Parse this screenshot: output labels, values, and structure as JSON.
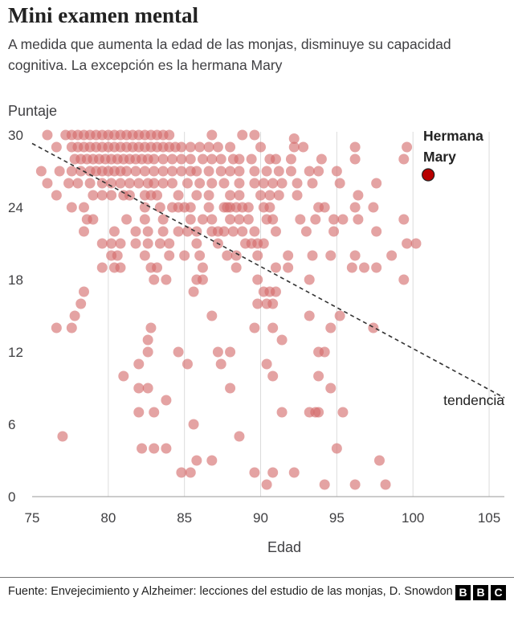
{
  "chart_data": {
    "type": "scatter",
    "title": "Mini examen mental",
    "subtitle": "A medida que aumenta la edad de las monjas, disminuye su capacidad cognitiva. La excepción es la hermana Mary",
    "xlabel": "Edad",
    "ylabel": "Puntaje",
    "xlim": [
      75,
      106
    ],
    "ylim": [
      0,
      30
    ],
    "x_ticks": [
      75,
      80,
      85,
      90,
      95,
      100,
      105
    ],
    "y_ticks": [
      0,
      6,
      12,
      18,
      24,
      30
    ],
    "x_tick_labels": [
      "75",
      "80",
      "85",
      "90",
      "95",
      "100",
      "105"
    ],
    "y_tick_labels": [
      "0",
      "6",
      "12",
      "18",
      "24",
      "30"
    ],
    "grid": "vertical",
    "point_color": "#d46a6a",
    "highlight_color": "#b80000",
    "trend_line": {
      "label": "tendencia",
      "from": [
        75,
        29.3
      ],
      "to": [
        106,
        8.2
      ]
    },
    "highlight": {
      "label_line1": "Hermana",
      "label_line2": "Mary",
      "x": 101,
      "y": 26.7
    },
    "points": [
      [
        76,
        30
      ],
      [
        77.2,
        30
      ],
      [
        77.6,
        30
      ],
      [
        78,
        30
      ],
      [
        78.4,
        30
      ],
      [
        78.8,
        30
      ],
      [
        79.2,
        30
      ],
      [
        79.6,
        30
      ],
      [
        80,
        30
      ],
      [
        80.4,
        30
      ],
      [
        80.8,
        30
      ],
      [
        81.2,
        30
      ],
      [
        81.6,
        30
      ],
      [
        82,
        30
      ],
      [
        82.4,
        30
      ],
      [
        82.8,
        30
      ],
      [
        83.2,
        30
      ],
      [
        83.6,
        30
      ],
      [
        84,
        30
      ],
      [
        86.8,
        30
      ],
      [
        88.8,
        30
      ],
      [
        89.6,
        30
      ],
      [
        92.2,
        29.7
      ],
      [
        76.6,
        29
      ],
      [
        77.6,
        29
      ],
      [
        78,
        29
      ],
      [
        78.4,
        29
      ],
      [
        78.8,
        29
      ],
      [
        79.2,
        29
      ],
      [
        79.6,
        29
      ],
      [
        80,
        29
      ],
      [
        80.4,
        29
      ],
      [
        80.8,
        29
      ],
      [
        81.2,
        29
      ],
      [
        81.6,
        29
      ],
      [
        82,
        29
      ],
      [
        82.4,
        29
      ],
      [
        82.8,
        29
      ],
      [
        83.2,
        29
      ],
      [
        83.6,
        29
      ],
      [
        84,
        29
      ],
      [
        84.4,
        29
      ],
      [
        84.8,
        29
      ],
      [
        85.4,
        29
      ],
      [
        86,
        29
      ],
      [
        86.6,
        29
      ],
      [
        87.2,
        29
      ],
      [
        88,
        29
      ],
      [
        90,
        29
      ],
      [
        92.2,
        29
      ],
      [
        92.8,
        29
      ],
      [
        96.2,
        29
      ],
      [
        99.6,
        29
      ],
      [
        77.8,
        28
      ],
      [
        78.2,
        28
      ],
      [
        78.6,
        28
      ],
      [
        79,
        28
      ],
      [
        79.4,
        28
      ],
      [
        79.8,
        28
      ],
      [
        80.2,
        28
      ],
      [
        80.6,
        28
      ],
      [
        81,
        28
      ],
      [
        81.4,
        28
      ],
      [
        81.8,
        28
      ],
      [
        82.2,
        28
      ],
      [
        82.6,
        28
      ],
      [
        83,
        28
      ],
      [
        83.6,
        28
      ],
      [
        84.2,
        28
      ],
      [
        84.8,
        28
      ],
      [
        85.4,
        28
      ],
      [
        86.2,
        28
      ],
      [
        86.8,
        28
      ],
      [
        87.4,
        28
      ],
      [
        88.2,
        28
      ],
      [
        88.6,
        28
      ],
      [
        89.4,
        28
      ],
      [
        90.6,
        28
      ],
      [
        91,
        28
      ],
      [
        92,
        28
      ],
      [
        94,
        28
      ],
      [
        96.2,
        28
      ],
      [
        99.4,
        28
      ],
      [
        75.6,
        27
      ],
      [
        76.8,
        27
      ],
      [
        77.6,
        27
      ],
      [
        78.2,
        27
      ],
      [
        78.8,
        27
      ],
      [
        79.2,
        27
      ],
      [
        79.6,
        27
      ],
      [
        80,
        27
      ],
      [
        80.4,
        27
      ],
      [
        80.8,
        27
      ],
      [
        81.2,
        27
      ],
      [
        81.8,
        27
      ],
      [
        82.4,
        27
      ],
      [
        83,
        27
      ],
      [
        83.6,
        27
      ],
      [
        84.2,
        27
      ],
      [
        84.8,
        27
      ],
      [
        85.4,
        27
      ],
      [
        85.8,
        27
      ],
      [
        86.6,
        27
      ],
      [
        87.4,
        27
      ],
      [
        88,
        27
      ],
      [
        88.6,
        27
      ],
      [
        89.6,
        27
      ],
      [
        90.4,
        27
      ],
      [
        91.2,
        27
      ],
      [
        92,
        27
      ],
      [
        93.2,
        27
      ],
      [
        93.8,
        27
      ],
      [
        95,
        27
      ],
      [
        76,
        26
      ],
      [
        77.4,
        26
      ],
      [
        78,
        26
      ],
      [
        78.8,
        26
      ],
      [
        79.6,
        26
      ],
      [
        80.2,
        26
      ],
      [
        80.8,
        26
      ],
      [
        81.4,
        26
      ],
      [
        82,
        26
      ],
      [
        82.6,
        26
      ],
      [
        83,
        26
      ],
      [
        83.6,
        26
      ],
      [
        84.2,
        26
      ],
      [
        85.2,
        26
      ],
      [
        86,
        26
      ],
      [
        86.8,
        26
      ],
      [
        87.6,
        26
      ],
      [
        88.6,
        26
      ],
      [
        89.6,
        26
      ],
      [
        90.2,
        26
      ],
      [
        90.8,
        26
      ],
      [
        91.4,
        26
      ],
      [
        92.4,
        26
      ],
      [
        93.4,
        26
      ],
      [
        95.2,
        26
      ],
      [
        97.6,
        26
      ],
      [
        76.6,
        25
      ],
      [
        79,
        25
      ],
      [
        79.6,
        25
      ],
      [
        80.2,
        25
      ],
      [
        81,
        25
      ],
      [
        81.4,
        25
      ],
      [
        82.4,
        25
      ],
      [
        82.8,
        25
      ],
      [
        83.2,
        25
      ],
      [
        84.6,
        25
      ],
      [
        85.8,
        25
      ],
      [
        86.6,
        25
      ],
      [
        88,
        25
      ],
      [
        88.6,
        25
      ],
      [
        90,
        25
      ],
      [
        90.6,
        25
      ],
      [
        91.2,
        25
      ],
      [
        92.4,
        25
      ],
      [
        96.4,
        25
      ],
      [
        77.6,
        24
      ],
      [
        78.4,
        24
      ],
      [
        82.4,
        24
      ],
      [
        83.4,
        24
      ],
      [
        84.2,
        24
      ],
      [
        84.6,
        24
      ],
      [
        85,
        24
      ],
      [
        85.4,
        24
      ],
      [
        86.6,
        24
      ],
      [
        87.6,
        24
      ],
      [
        87.8,
        24
      ],
      [
        88,
        24
      ],
      [
        88.4,
        24
      ],
      [
        88.8,
        24
      ],
      [
        89.2,
        24
      ],
      [
        90.2,
        24
      ],
      [
        90.6,
        24
      ],
      [
        93.8,
        24
      ],
      [
        94.2,
        24
      ],
      [
        96.2,
        24
      ],
      [
        97.4,
        24
      ],
      [
        78.6,
        23
      ],
      [
        79,
        23
      ],
      [
        81.2,
        23
      ],
      [
        82.4,
        23
      ],
      [
        83.6,
        23
      ],
      [
        85.4,
        23
      ],
      [
        86.2,
        23
      ],
      [
        86.8,
        23
      ],
      [
        88,
        23
      ],
      [
        88.6,
        23
      ],
      [
        89.2,
        23
      ],
      [
        90.4,
        23
      ],
      [
        90.8,
        23
      ],
      [
        92.6,
        23
      ],
      [
        93.6,
        23
      ],
      [
        94.8,
        23
      ],
      [
        95.4,
        23
      ],
      [
        96.4,
        23
      ],
      [
        99.4,
        23
      ],
      [
        78.4,
        22
      ],
      [
        80.4,
        22
      ],
      [
        81.8,
        22
      ],
      [
        82.6,
        22
      ],
      [
        83.6,
        22
      ],
      [
        84.6,
        22
      ],
      [
        85.2,
        22
      ],
      [
        85.8,
        22
      ],
      [
        86.8,
        22
      ],
      [
        87.2,
        22
      ],
      [
        87.6,
        22
      ],
      [
        88.2,
        22
      ],
      [
        88.8,
        22
      ],
      [
        89.6,
        22
      ],
      [
        91,
        22
      ],
      [
        93,
        22
      ],
      [
        94.8,
        22
      ],
      [
        97.6,
        22
      ],
      [
        79.6,
        21
      ],
      [
        80.2,
        21
      ],
      [
        80.8,
        21
      ],
      [
        81.8,
        21
      ],
      [
        82.6,
        21
      ],
      [
        83.4,
        21
      ],
      [
        84,
        21
      ],
      [
        85.8,
        21
      ],
      [
        87.2,
        21
      ],
      [
        89,
        21
      ],
      [
        89.4,
        21
      ],
      [
        89.8,
        21
      ],
      [
        90.2,
        21
      ],
      [
        99.6,
        21
      ],
      [
        100.2,
        21
      ],
      [
        80.2,
        20
      ],
      [
        80.6,
        20
      ],
      [
        82.4,
        20
      ],
      [
        84,
        20
      ],
      [
        85,
        20
      ],
      [
        86,
        20
      ],
      [
        87.8,
        20
      ],
      [
        88.4,
        20
      ],
      [
        89.8,
        20
      ],
      [
        91.8,
        20
      ],
      [
        93.4,
        20
      ],
      [
        94.6,
        20
      ],
      [
        96.2,
        20
      ],
      [
        98.6,
        20
      ],
      [
        79.6,
        19
      ],
      [
        80.4,
        19
      ],
      [
        80.8,
        19
      ],
      [
        82.8,
        19
      ],
      [
        83.2,
        19
      ],
      [
        86.2,
        19
      ],
      [
        88.4,
        19
      ],
      [
        91,
        19
      ],
      [
        91.8,
        19
      ],
      [
        96,
        19
      ],
      [
        96.8,
        19
      ],
      [
        97.6,
        19
      ],
      [
        83,
        18
      ],
      [
        83.8,
        18
      ],
      [
        85.8,
        18
      ],
      [
        86.2,
        18
      ],
      [
        89.8,
        18
      ],
      [
        93.2,
        18
      ],
      [
        99.4,
        18
      ],
      [
        85.6,
        17
      ],
      [
        90.2,
        17
      ],
      [
        90.6,
        17
      ],
      [
        91,
        17
      ],
      [
        78.4,
        17
      ],
      [
        78.2,
        16
      ],
      [
        89.8,
        16
      ],
      [
        90.4,
        16
      ],
      [
        90.8,
        16
      ],
      [
        77.8,
        15
      ],
      [
        86.8,
        15
      ],
      [
        93.2,
        15
      ],
      [
        95.2,
        15
      ],
      [
        76.6,
        14
      ],
      [
        77.6,
        14
      ],
      [
        82.8,
        14
      ],
      [
        89.6,
        14
      ],
      [
        90.8,
        14
      ],
      [
        94.6,
        14
      ],
      [
        97.4,
        14
      ],
      [
        82.6,
        13
      ],
      [
        91.4,
        13
      ],
      [
        82.6,
        12
      ],
      [
        84.6,
        12
      ],
      [
        87.2,
        12
      ],
      [
        88,
        12
      ],
      [
        93.8,
        12
      ],
      [
        94.2,
        12
      ],
      [
        82,
        11
      ],
      [
        85.2,
        11
      ],
      [
        87.4,
        11
      ],
      [
        90.4,
        11
      ],
      [
        81,
        10
      ],
      [
        90.8,
        10
      ],
      [
        93.8,
        10
      ],
      [
        82,
        9
      ],
      [
        82.6,
        9
      ],
      [
        88,
        9
      ],
      [
        94.6,
        9
      ],
      [
        83.8,
        8
      ],
      [
        82,
        7
      ],
      [
        83,
        7
      ],
      [
        91.4,
        7
      ],
      [
        93.2,
        7
      ],
      [
        93.6,
        7
      ],
      [
        93.8,
        7
      ],
      [
        95.4,
        7
      ],
      [
        85.6,
        6
      ],
      [
        77,
        5
      ],
      [
        88.6,
        5
      ],
      [
        82.2,
        4
      ],
      [
        83,
        4
      ],
      [
        83.8,
        4
      ],
      [
        95,
        4
      ],
      [
        85.8,
        3
      ],
      [
        86.8,
        3
      ],
      [
        97.8,
        3
      ],
      [
        84.8,
        2
      ],
      [
        85.4,
        2
      ],
      [
        89.6,
        2
      ],
      [
        90.8,
        2
      ],
      [
        92.2,
        2
      ],
      [
        90.4,
        1
      ],
      [
        94.2,
        1
      ],
      [
        96.2,
        1
      ],
      [
        98.2,
        1
      ]
    ]
  },
  "footer": {
    "source": "Fuente: Envejecimiento y Alzheimer: lecciones del estudio de las monjas, D. Snowdon",
    "logo": [
      "B",
      "B",
      "C"
    ]
  }
}
